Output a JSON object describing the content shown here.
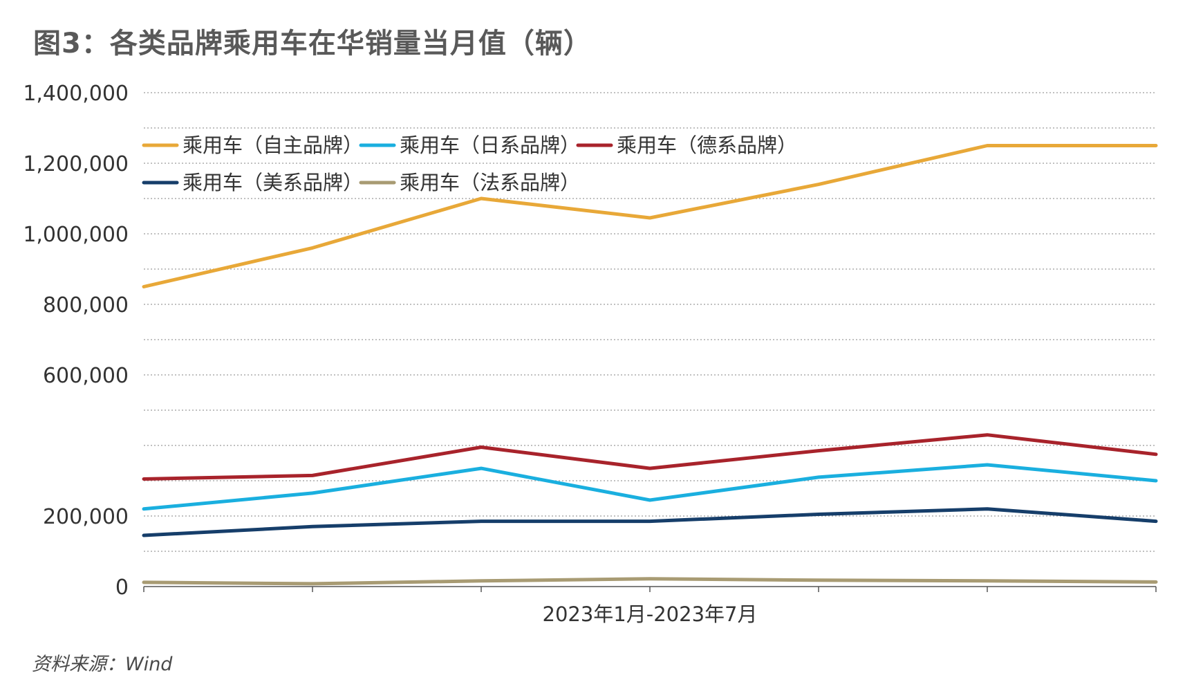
{
  "title": "图3：各类品牌乘用车在华销量当月值（辆）",
  "source": "资料来源：Wind",
  "chart_data": {
    "type": "line",
    "title": "图3：各类品牌乘用车在华销量当月值（辆）",
    "xlabel": "2023年1月-2023年7月",
    "ylabel": "",
    "ylim": [
      0,
      1400000
    ],
    "yticks": [
      0,
      200000,
      400000,
      600000,
      800000,
      1000000,
      1200000,
      1400000
    ],
    "ytick_labels": [
      "0",
      "200,000",
      "",
      "600,000",
      "800,000",
      "1,000,000",
      "1,200,000",
      "1,400,000"
    ],
    "x": [
      1,
      2,
      3,
      4,
      5,
      6,
      7
    ],
    "grid": "horizontal-dotted",
    "legend_position": "top-left",
    "series": [
      {
        "name": "乘用车（自主品牌）",
        "color": "#E8A838",
        "values": [
          850000,
          960000,
          1100000,
          1045000,
          1140000,
          1250000,
          1250000
        ]
      },
      {
        "name": "乘用车（日系品牌）",
        "color": "#1AAFDF",
        "values": [
          220000,
          265000,
          335000,
          245000,
          310000,
          345000,
          300000
        ]
      },
      {
        "name": "乘用车（德系品牌）",
        "color": "#A8232B",
        "values": [
          305000,
          315000,
          395000,
          335000,
          385000,
          430000,
          375000
        ]
      },
      {
        "name": "乘用车（美系品牌）",
        "color": "#163E6A",
        "values": [
          145000,
          170000,
          185000,
          185000,
          205000,
          220000,
          185000
        ]
      },
      {
        "name": "乘用车（法系品牌）",
        "color": "#A89B73",
        "values": [
          12000,
          8000,
          16000,
          22000,
          18000,
          16000,
          13000
        ]
      }
    ]
  }
}
